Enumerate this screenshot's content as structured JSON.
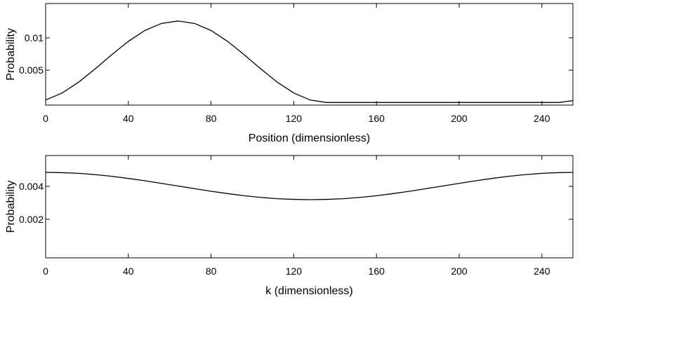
{
  "chart_data": [
    {
      "type": "line",
      "xlabel": "Position (dimensionless)",
      "ylabel": "Probability",
      "x": [
        0,
        8,
        16,
        24,
        32,
        40,
        48,
        56,
        64,
        72,
        80,
        88,
        96,
        104,
        112,
        120,
        128,
        136,
        144,
        152,
        160,
        168,
        176,
        184,
        192,
        200,
        208,
        216,
        224,
        232,
        240,
        248,
        255
      ],
      "values": [
        0.00038,
        0.00147,
        0.00315,
        0.00521,
        0.00739,
        0.00945,
        0.01113,
        0.01222,
        0.0126,
        0.01222,
        0.01113,
        0.00945,
        0.00739,
        0.00521,
        0.00315,
        0.00147,
        0.00038,
        0,
        0,
        0,
        0,
        0,
        0,
        0,
        0,
        0,
        0,
        0,
        0,
        0,
        0,
        0,
        0.00029
      ],
      "color": "#000000",
      "xlim": [
        0,
        255
      ],
      "xticks": [
        0,
        40,
        80,
        120,
        160,
        200,
        240
      ],
      "ylim": [
        -0.0004,
        0.0153
      ],
      "yticks": [
        0.005,
        0.01
      ]
    },
    {
      "type": "line",
      "xlabel": "k (dimensionless)",
      "ylabel": "Probability",
      "x": [
        0,
        8,
        16,
        24,
        32,
        40,
        48,
        56,
        64,
        72,
        80,
        88,
        96,
        104,
        112,
        120,
        128,
        136,
        144,
        152,
        160,
        168,
        176,
        184,
        192,
        200,
        208,
        216,
        224,
        232,
        240,
        248,
        255
      ],
      "values": [
        0.00485,
        0.00483,
        0.00479,
        0.00471,
        0.00461,
        0.00448,
        0.00434,
        0.00418,
        0.00402,
        0.00386,
        0.0037,
        0.00356,
        0.00343,
        0.00333,
        0.00325,
        0.00321,
        0.00319,
        0.00321,
        0.00325,
        0.00333,
        0.00343,
        0.00356,
        0.0037,
        0.00386,
        0.00402,
        0.00418,
        0.00434,
        0.00448,
        0.00461,
        0.00471,
        0.00479,
        0.00483,
        0.00485
      ],
      "color": "#000000",
      "xlim": [
        0,
        255
      ],
      "xticks": [
        0,
        40,
        80,
        120,
        160,
        200,
        240
      ],
      "ylim": [
        -0.00034,
        0.00587
      ],
      "yticks": [
        0.002,
        0.004
      ]
    }
  ]
}
